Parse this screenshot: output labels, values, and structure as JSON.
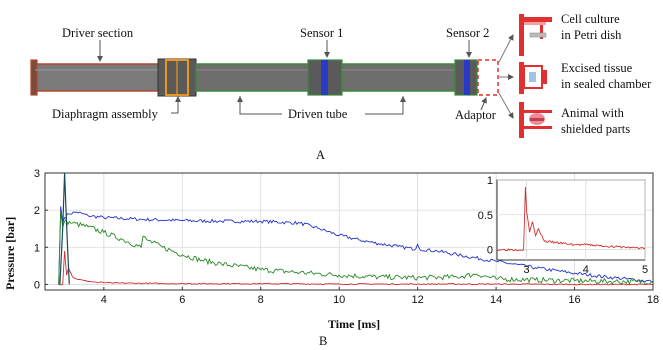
{
  "diagram": {
    "labels": {
      "driver_section": "Driver section",
      "diaphragm_assembly": "Diaphragm assembly",
      "sensor1": "Sensor 1",
      "sensor2": "Sensor 2",
      "driven_tube": "Driven tube",
      "adaptor": "Adaptor",
      "cell_culture": [
        "Cell culture",
        "in Petri dish"
      ],
      "excised_tissue": [
        "Excised tissue",
        "in sealed chamber"
      ],
      "animal": [
        "Animal with",
        "shielded parts"
      ]
    },
    "colors": {
      "driver": "#b5472d",
      "diaphragm": "#e8961c",
      "driven": "#3a8a3a",
      "sensor": "#2a39c8",
      "adaptor": "#e03030",
      "tube_body": "#6e6e6e"
    },
    "panel_label": "A"
  },
  "chart_data": {
    "type": "line",
    "panel_label": "B",
    "xlabel": "Time [ms]",
    "ylabel": "Pressure [bar]",
    "xlim": [
      2.5,
      18
    ],
    "ylim": [
      -0.15,
      3
    ],
    "xticks": [
      4,
      6,
      8,
      10,
      12,
      14,
      16,
      18
    ],
    "yticks": [
      0,
      1,
      2,
      3
    ],
    "grid": true,
    "series": [
      {
        "color": "#2233cc",
        "x": [
          2.85,
          2.9,
          2.95,
          3.0,
          3.1,
          3.3,
          3.6,
          4.0,
          5.0,
          6.0,
          7.0,
          8.0,
          9.0,
          9.5,
          10.0,
          10.5,
          11.0,
          11.5,
          11.95,
          12.0,
          12.05,
          12.5,
          13.0,
          14.0,
          15.0,
          16.0,
          17.0,
          18.0
        ],
        "y": [
          0.0,
          2.1,
          1.65,
          1.8,
          1.9,
          1.95,
          1.85,
          1.8,
          1.75,
          1.72,
          1.7,
          1.7,
          1.65,
          1.5,
          1.32,
          1.2,
          1.1,
          1.02,
          0.95,
          1.08,
          0.95,
          0.9,
          0.8,
          0.62,
          0.45,
          0.3,
          0.18,
          0.08
        ]
      },
      {
        "color": "#2a8a2a",
        "x": [
          2.85,
          2.9,
          2.95,
          3.0,
          3.2,
          3.6,
          4.0,
          4.5,
          4.95,
          5.0,
          5.1,
          5.5,
          6.0,
          6.5,
          7.0,
          8.0,
          9.0,
          10.0,
          11.0,
          12.0,
          13.0,
          13.5,
          14.0,
          15.0,
          16.0,
          17.0,
          18.0
        ],
        "y": [
          0.0,
          1.95,
          1.55,
          1.7,
          1.65,
          1.55,
          1.4,
          1.2,
          1.0,
          1.3,
          1.2,
          1.0,
          0.8,
          0.65,
          0.55,
          0.4,
          0.32,
          0.25,
          0.2,
          0.18,
          0.2,
          0.28,
          0.15,
          0.12,
          0.1,
          0.08,
          0.07
        ]
      },
      {
        "color": "#d43030",
        "x": [
          2.85,
          2.95,
          3.0,
          3.05,
          3.1,
          3.2,
          3.3,
          3.5,
          3.8,
          4.2,
          5.0,
          6.0,
          8.0,
          10.0,
          12.0,
          14.0,
          16.0,
          18.0
        ],
        "y": [
          0.0,
          0.0,
          0.9,
          0.25,
          0.45,
          0.2,
          0.15,
          0.1,
          0.06,
          0.04,
          0.03,
          0.02,
          0.02,
          0.01,
          0.01,
          0.01,
          0.0,
          0.0
        ]
      },
      {
        "color": "#1a4a5a",
        "x": [
          2.88,
          2.95,
          3.0,
          3.05,
          3.12
        ],
        "y": [
          0.0,
          1.5,
          3.0,
          1.6,
          0.0
        ]
      }
    ],
    "inset": {
      "xlim": [
        2.5,
        5
      ],
      "ylim": [
        -0.15,
        1
      ],
      "xticks": [
        3,
        4,
        5
      ],
      "yticks": [
        0,
        0.5,
        1
      ],
      "ytick_labels": [
        "0",
        "0.5",
        "1"
      ],
      "series": [
        {
          "color": "#d43030",
          "x": [
            2.5,
            2.95,
            2.98,
            3.0,
            3.05,
            3.1,
            3.15,
            3.2,
            3.3,
            3.5,
            3.8,
            4.0,
            4.5,
            5.0
          ],
          "y": [
            0.0,
            0.0,
            0.9,
            0.55,
            0.25,
            0.4,
            0.2,
            0.3,
            0.12,
            0.1,
            0.07,
            0.07,
            0.04,
            0.02
          ]
        }
      ]
    }
  }
}
